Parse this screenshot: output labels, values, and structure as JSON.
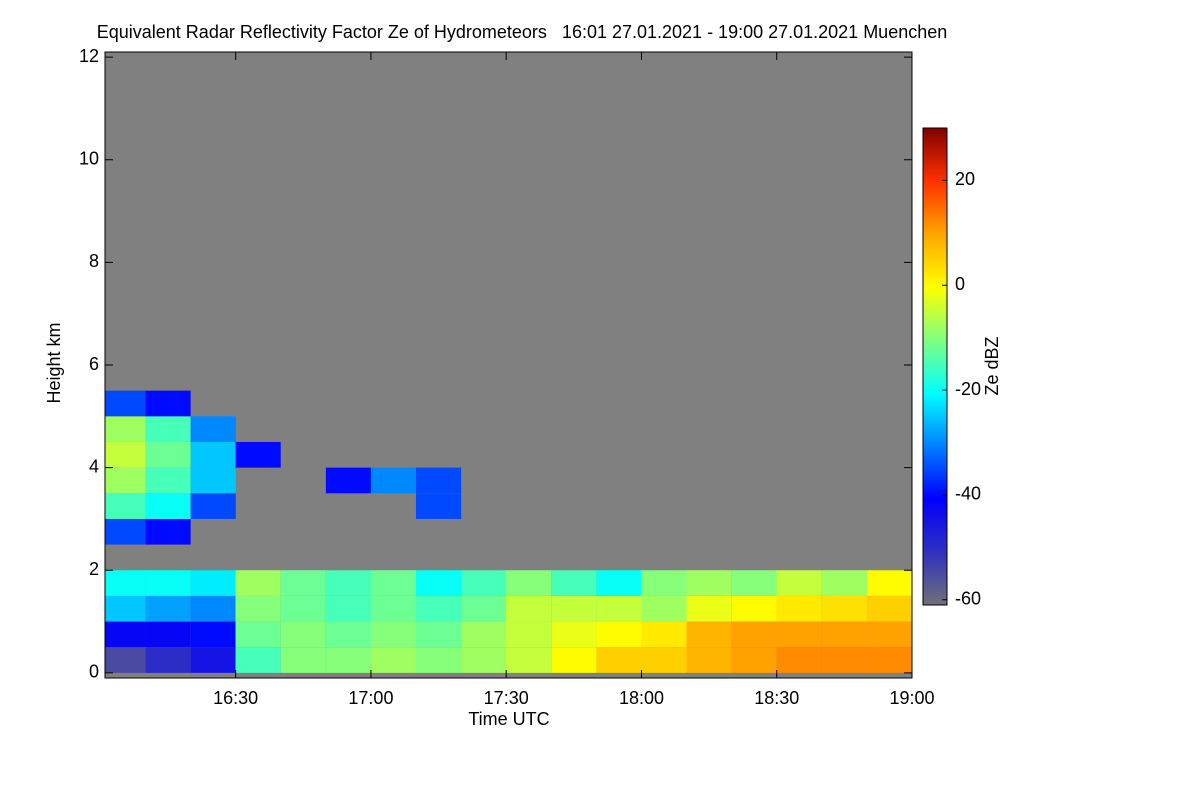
{
  "chart_data": {
    "type": "heatmap",
    "title": "Equivalent Radar Reflectivity Factor Ze of Hydrometeors   16:01 27.01.2021 - 19:00 27.01.2021 Muenchen",
    "xlabel": "Time UTC",
    "ylabel": "Height km",
    "colorbar_label": "Ze dBZ",
    "x": [
      16.083,
      16.25,
      16.417,
      16.583,
      16.75,
      16.917,
      17.083,
      17.25,
      17.417,
      17.583,
      17.75,
      17.917,
      18.083,
      18.25,
      18.417,
      18.583,
      18.75,
      18.917
    ],
    "y": [
      0.25,
      0.75,
      1.25,
      1.75,
      2.25,
      2.75,
      3.25,
      3.75,
      4.25,
      4.75,
      5.25
    ],
    "values": [
      [
        -55,
        -50,
        -45,
        -15,
        -10,
        -10,
        -8,
        -10,
        -8,
        -5,
        0,
        5,
        5,
        8,
        10,
        12,
        12,
        12
      ],
      [
        -42,
        -42,
        -40,
        -12,
        -10,
        -12,
        -10,
        -12,
        -8,
        -5,
        -2,
        0,
        2,
        8,
        10,
        10,
        10,
        10
      ],
      [
        -25,
        -28,
        -30,
        -10,
        -12,
        -15,
        -12,
        -15,
        -12,
        -5,
        -5,
        -5,
        -8,
        -2,
        0,
        2,
        3,
        5
      ],
      [
        -20,
        -20,
        -22,
        -8,
        -12,
        -15,
        -12,
        -20,
        -15,
        -10,
        -15,
        -20,
        -10,
        -8,
        -10,
        -5,
        -8,
        0
      ],
      [
        null,
        null,
        null,
        null,
        null,
        null,
        null,
        null,
        null,
        null,
        null,
        null,
        null,
        null,
        null,
        null,
        null,
        null
      ],
      [
        -35,
        -40,
        null,
        null,
        null,
        null,
        null,
        null,
        null,
        null,
        null,
        null,
        null,
        null,
        null,
        null,
        null,
        null
      ],
      [
        -15,
        -20,
        -35,
        null,
        null,
        null,
        null,
        -35,
        null,
        null,
        null,
        null,
        null,
        null,
        null,
        null,
        null,
        null
      ],
      [
        -8,
        -15,
        -25,
        null,
        null,
        -40,
        -30,
        -35,
        null,
        null,
        null,
        null,
        null,
        null,
        null,
        null,
        null,
        null
      ],
      [
        -5,
        -12,
        -25,
        -40,
        null,
        null,
        null,
        null,
        null,
        null,
        null,
        null,
        null,
        null,
        null,
        null,
        null,
        null
      ],
      [
        -8,
        -15,
        -30,
        null,
        null,
        null,
        null,
        null,
        null,
        null,
        null,
        null,
        null,
        null,
        null,
        null,
        null,
        null
      ],
      [
        -35,
        -40,
        null,
        null,
        null,
        null,
        null,
        null,
        null,
        null,
        null,
        null,
        null,
        null,
        null,
        null,
        null,
        null
      ]
    ],
    "xlim": [
      16.017,
      19.0
    ],
    "xticks": [
      {
        "value": 16.5,
        "label": "16:30"
      },
      {
        "value": 17,
        "label": "17:00"
      },
      {
        "value": 17.5,
        "label": "17:30"
      },
      {
        "value": 18,
        "label": "18:00"
      },
      {
        "value": 18.5,
        "label": "18:30"
      },
      {
        "value": 19,
        "label": "19:00"
      }
    ],
    "ylim": [
      -0.1,
      12.1
    ],
    "yticks": [
      0,
      2,
      4,
      6,
      8,
      10,
      12
    ],
    "zlim": [
      -61,
      30
    ],
    "zticks": [
      -60,
      -40,
      -20,
      0,
      20
    ],
    "colormap": [
      "#707078",
      "#3030c0",
      "#0000ff",
      "#0080ff",
      "#00ffff",
      "#80ff80",
      "#ffff00",
      "#ffa500",
      "#ff3000",
      "#800000"
    ],
    "background_color": "#808080"
  }
}
